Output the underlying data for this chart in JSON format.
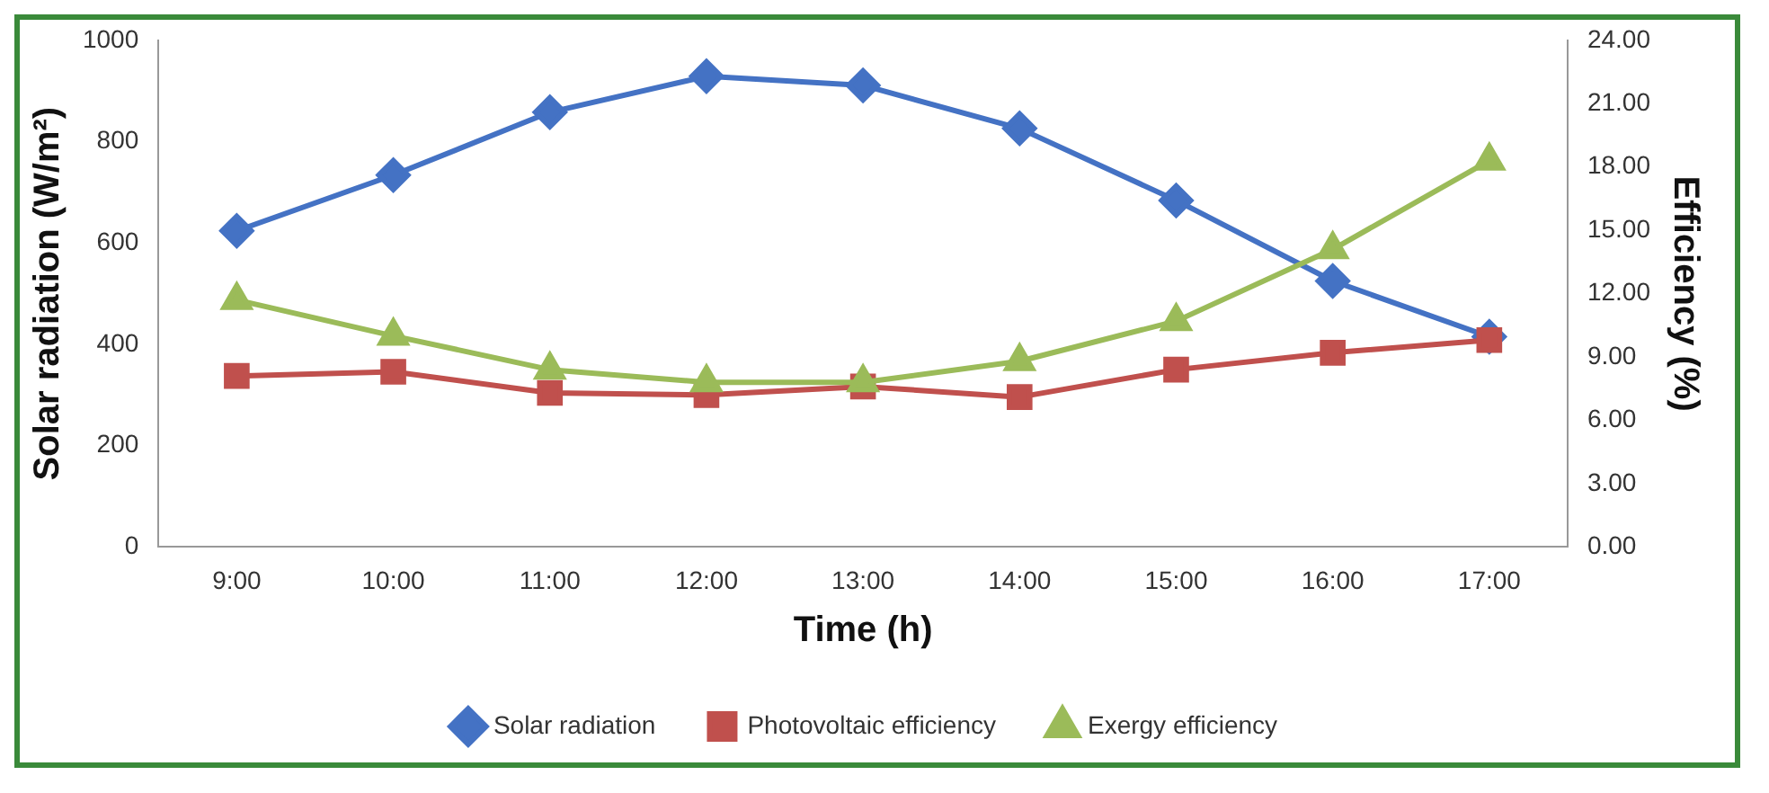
{
  "chart_data": {
    "type": "line",
    "xlabel": "Time (h)",
    "ylabel": "Solar radiation (W/m²)",
    "y2label": "Efficiency (%)",
    "categories": [
      "9:00",
      "10:00",
      "11:00",
      "12:00",
      "13:00",
      "14:00",
      "15:00",
      "16:00",
      "17:00"
    ],
    "ylim": [
      0,
      1000
    ],
    "yticks": [
      0,
      200,
      400,
      600,
      800,
      1000
    ],
    "y2lim": [
      0,
      24
    ],
    "y2ticks": [
      {
        "value": 0,
        "label": "0.00"
      },
      {
        "value": 3,
        "label": "3.00"
      },
      {
        "value": 6,
        "label": "6.00"
      },
      {
        "value": 9,
        "label": "9.00"
      },
      {
        "value": 12,
        "label": "12.00"
      },
      {
        "value": 15,
        "label": "15.00"
      },
      {
        "value": 18,
        "label": "18.00"
      },
      {
        "value": 21,
        "label": "21.00"
      },
      {
        "value": 24,
        "label": "24.00"
      }
    ],
    "grid": false,
    "legend": "bottom",
    "line_style": "solid",
    "series": [
      {
        "name": "Solar radiation",
        "color": "#4472c4",
        "marker": "diamond",
        "values": [
          624,
          734,
          858,
          929,
          911,
          826,
          684,
          525,
          415
        ]
      },
      {
        "name": "Photovoltaic efficiency",
        "color": "#c0504d",
        "marker": "square",
        "axis": "y2",
        "values": [
          8.1,
          8.3,
          7.3,
          7.2,
          7.6,
          7.1,
          8.4,
          9.2,
          9.8
        ]
      },
      {
        "name": "Exergy efficiency",
        "color": "#9bbb59",
        "marker": "triangle",
        "axis": "y2",
        "values": [
          11.7,
          10.0,
          8.4,
          7.8,
          7.8,
          8.8,
          10.7,
          14.1,
          18.3
        ]
      }
    ]
  }
}
